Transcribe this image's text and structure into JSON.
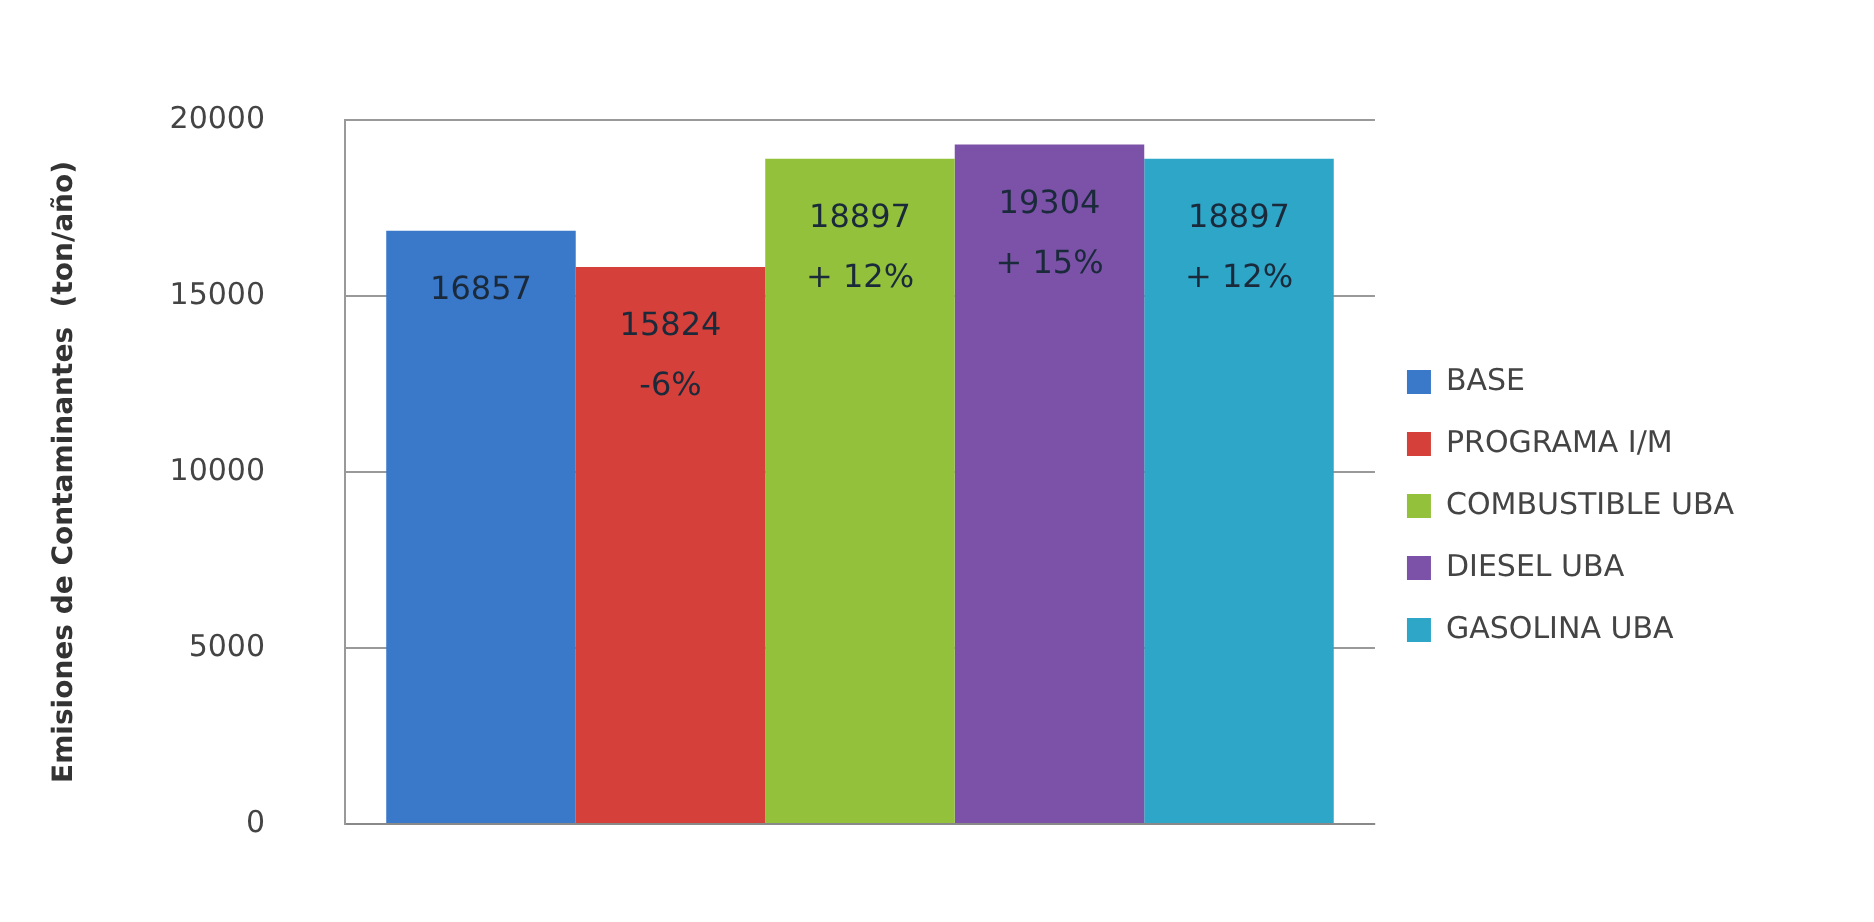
{
  "chart_data": {
    "type": "bar",
    "ylabel": "Emisiones de Contaminantes  (ton/año)",
    "categories": [
      null
    ],
    "series": [
      {
        "name": "BASE",
        "color": "#3a78c9",
        "values": [
          16857
        ],
        "value_labels": [
          "16857"
        ]
      },
      {
        "name": "PROGRAMA I/M",
        "color": "#d5403a",
        "values": [
          15824
        ],
        "value_labels": [
          "15824\n-6%"
        ]
      },
      {
        "name": "COMBUSTIBLE UBA",
        "color": "#93c13c",
        "values": [
          18897
        ],
        "value_labels": [
          "18897\n+ 12%"
        ]
      },
      {
        "name": "DIESEL UBA",
        "color": "#7b52a8",
        "values": [
          19304
        ],
        "value_labels": [
          "19304\n+ 15%"
        ]
      },
      {
        "name": "GASOLINA UBA",
        "color": "#2ea6c8",
        "values": [
          18897
        ],
        "value_labels": [
          "18897\n+ 12%"
        ]
      }
    ],
    "ylim": [
      0,
      20000
    ],
    "yticks": [
      0,
      5000,
      10000,
      15000,
      20000
    ],
    "grid": "y",
    "legend": "right"
  }
}
